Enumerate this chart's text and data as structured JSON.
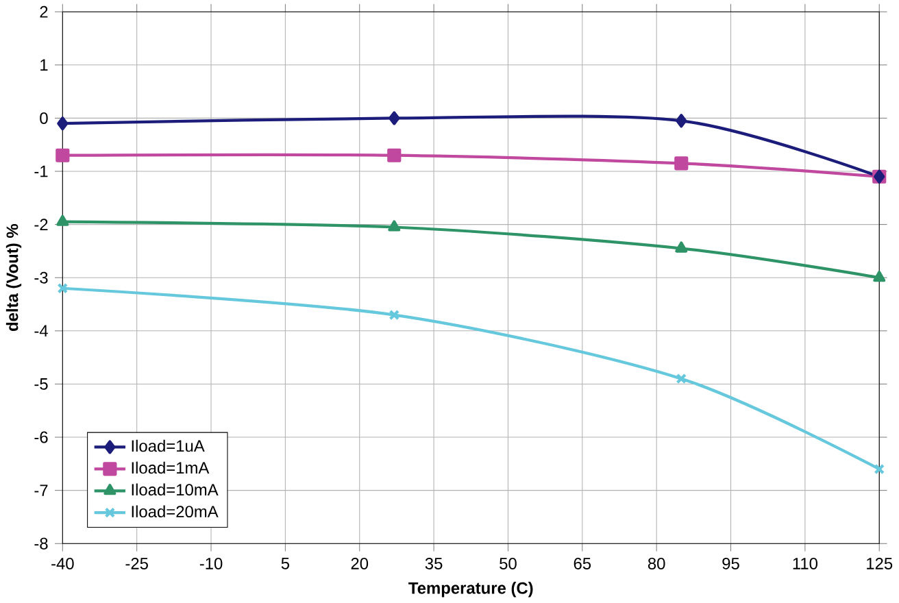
{
  "chart_data": {
    "type": "line",
    "xlabel": "Temperature (C)",
    "ylabel": "delta (Vout) %",
    "x": [
      -40,
      27,
      85,
      125
    ],
    "series": [
      {
        "name": "Iload=1uA",
        "color": "#1c1c7a",
        "marker": "diamond",
        "values": [
          -0.1,
          0.0,
          -0.05,
          -1.1
        ]
      },
      {
        "name": "Iload=1mA",
        "color": "#c0489e",
        "marker": "square",
        "values": [
          -0.7,
          -0.7,
          -0.85,
          -1.1
        ]
      },
      {
        "name": "Iload=10mA",
        "color": "#2e9468",
        "marker": "triangle",
        "values": [
          -1.95,
          -2.05,
          -2.45,
          -3.0
        ]
      },
      {
        "name": "Iload=20mA",
        "color": "#66c8dc",
        "marker": "cross",
        "values": [
          -3.2,
          -3.7,
          -4.9,
          -6.6
        ]
      }
    ],
    "xlim": [
      -40,
      125
    ],
    "xticks": [
      -40,
      -25,
      -10,
      5,
      20,
      35,
      50,
      65,
      80,
      95,
      110,
      125
    ],
    "ylim": [
      -8,
      2
    ],
    "yticks": [
      -8,
      -7,
      -6,
      -5,
      -4,
      -3,
      -2,
      -1,
      0,
      1,
      2
    ],
    "grid": true,
    "legend": "bottom left",
    "line_style": "solid"
  }
}
